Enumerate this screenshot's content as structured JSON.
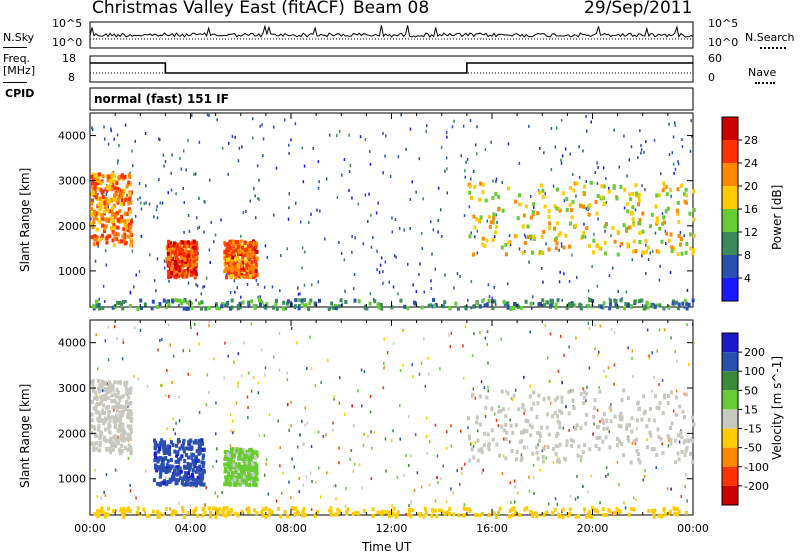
{
  "header": {
    "title": "Christmas Valley East (fitACF)",
    "beam": "Beam 08",
    "date": "29/Sep/2011"
  },
  "strips": {
    "nsky_label": "N.Sky",
    "nsky_ticks": [
      "10^5",
      "10^0"
    ],
    "nsearch_label": "N.Search",
    "nsearch_ticks": [
      "10^5",
      "10^0"
    ],
    "freq_label": "Freq.",
    "freq_unit": "[MHz]",
    "freq_ticks": [
      "18",
      "8"
    ],
    "nave_label": "Nave",
    "nave_ticks": [
      "60",
      "0"
    ],
    "cpid_label": "CPID",
    "cpid_value": "normal (fast) 151 IF"
  },
  "chart_data": [
    {
      "type": "heatmap",
      "name": "power-panel",
      "ylabel": "Slant Range [km]",
      "xlabel": "",
      "xlim": [
        "00:00",
        "24:00"
      ],
      "ylim": [
        200,
        4500
      ],
      "yticks": [
        "1000",
        "2000",
        "3000",
        "4000"
      ],
      "colorbar": {
        "label": "Power [dB]",
        "ticks": [
          "4",
          "8",
          "12",
          "16",
          "20",
          "24",
          "28"
        ],
        "range": [
          0,
          32
        ],
        "colors": [
          "#1a1aff",
          "#2a4fb0",
          "#3a8a5a",
          "#66cc33",
          "#ffcc00",
          "#ff8800",
          "#ff3300",
          "#cc0000"
        ]
      },
      "features": [
        {
          "t_start": 0.0,
          "t_end": 1.6,
          "r_start": 1600,
          "r_end": 3200,
          "level": 22
        },
        {
          "t_start": 3.0,
          "t_end": 4.2,
          "r_start": 900,
          "r_end": 1700,
          "level": 26
        },
        {
          "t_start": 5.3,
          "t_end": 6.6,
          "r_start": 900,
          "r_end": 1700,
          "level": 24
        },
        {
          "t_start": 15.0,
          "t_end": 24.0,
          "r_start": 1400,
          "r_end": 3000,
          "level": 18
        },
        {
          "t_start": 0.0,
          "t_end": 24.0,
          "r_start": 200,
          "r_end": 400,
          "level": 10
        }
      ]
    },
    {
      "type": "heatmap",
      "name": "velocity-panel",
      "ylabel": "Slant Range [km]",
      "xlabel": "Time UT",
      "xticks": [
        "00:00",
        "04:00",
        "08:00",
        "12:00",
        "16:00",
        "20:00",
        "00:00"
      ],
      "xlim": [
        "00:00",
        "24:00"
      ],
      "ylim": [
        200,
        4500
      ],
      "yticks": [
        "1000",
        "2000",
        "3000",
        "4000"
      ],
      "colorbar": {
        "label": "Velocity [m s^-1]",
        "ticks": [
          "200",
          "100",
          "50",
          "15",
          "-15",
          "-50",
          "-100",
          "-200"
        ],
        "colors": [
          "#1a1acc",
          "#2a4fb0",
          "#3a8a3a",
          "#66cc33",
          "#c8c8c0",
          "#ffcc00",
          "#ff8800",
          "#ff3300",
          "#cc0000"
        ]
      },
      "features": [
        {
          "t_start": 0.0,
          "t_end": 1.6,
          "r_start": 1600,
          "r_end": 3200,
          "level": 0
        },
        {
          "t_start": 2.5,
          "t_end": 4.5,
          "r_start": 900,
          "r_end": 1900,
          "level": 180
        },
        {
          "t_start": 5.3,
          "t_end": 6.6,
          "r_start": 900,
          "r_end": 1700,
          "level": 40
        },
        {
          "t_start": 15.0,
          "t_end": 24.0,
          "r_start": 1400,
          "r_end": 3000,
          "level": 0
        },
        {
          "t_start": 0.0,
          "t_end": 24.0,
          "r_start": 200,
          "r_end": 400,
          "level": -50
        }
      ]
    }
  ]
}
